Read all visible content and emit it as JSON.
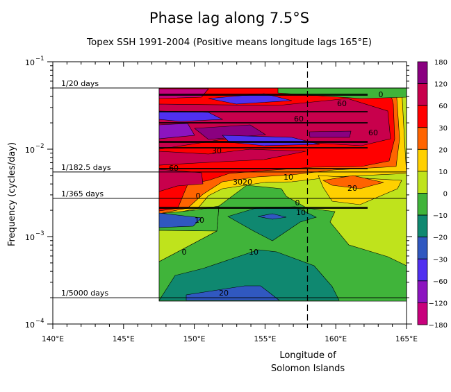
{
  "chart_data": {
    "type": "heatmap",
    "subtype": "filled contour",
    "title": "Phase lag along 7.5°S",
    "subtitle": "Topex SSH 1991-2004 (Positive means longitude lags 165°E)",
    "xlabel": [
      "Longitude of",
      "Solomon Islands"
    ],
    "ylabel": "Frequency (cycles/day)",
    "xlim": [
      140,
      165
    ],
    "ylim": [
      0.0001,
      0.1
    ],
    "yscale": "log",
    "x_ticks": [
      140,
      145,
      150,
      155,
      160,
      165
    ],
    "x_tick_labels": [
      "140°E",
      "145°E",
      "150°E",
      "155°E",
      "160°E",
      "165°E"
    ],
    "y_tick_labels": [
      {
        "base": "10",
        "exp": "−1",
        "value": 0.1
      },
      {
        "base": "10",
        "exp": "−2",
        "value": 0.01
      },
      {
        "base": "10",
        "exp": "−3",
        "value": 0.001
      },
      {
        "base": "10",
        "exp": "−4",
        "value": 0.0001
      }
    ],
    "reference_lines": [
      {
        "label": "1/20 days",
        "frequency": 0.05
      },
      {
        "label": "1/182.5 days",
        "frequency": 0.005479
      },
      {
        "label": "1/365 days",
        "frequency": 0.00274
      },
      {
        "label": "1/5000 days",
        "frequency": 0.0002
      }
    ],
    "marker_longitude": 158,
    "data_extent": {
      "lon": [
        147.5,
        165
      ],
      "frequency": [
        0.0002,
        0.05
      ]
    },
    "contour_labels": [
      "0",
      "60",
      "60",
      "60",
      "30",
      "60",
      "30",
      "20",
      "10",
      "20",
      "0",
      "0",
      "10",
      "10",
      "0",
      "10",
      "20"
    ],
    "colorbar": {
      "levels": [
        "180",
        "120",
        "60",
        "30",
        "20",
        "10",
        "0",
        "−10",
        "−20",
        "−30",
        "−60",
        "−120",
        "−180"
      ],
      "colors": [
        "#8a0080",
        "#c8004c",
        "#ff0000",
        "#ff6400",
        "#ffd000",
        "#bfe31c",
        "#40b43a",
        "#0f8870",
        "#3058c0",
        "#5030f0",
        "#8c14c0",
        "#c8007c"
      ]
    }
  }
}
